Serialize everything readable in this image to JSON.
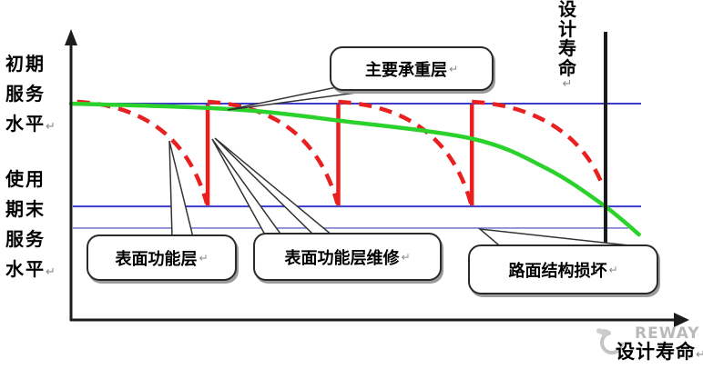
{
  "return_mark": "↵",
  "y_axis": {
    "top_label_lines": [
      "初期",
      "服务",
      "水平"
    ],
    "bottom_label_lines": [
      "使用",
      "期末",
      "服务",
      "水平"
    ]
  },
  "design_life_vertical": {
    "chars": [
      "设",
      "计",
      "寿",
      "命"
    ]
  },
  "x_axis_label": {
    "text": "设计寿命"
  },
  "watermark": {
    "text": "REWAY"
  },
  "callouts": {
    "main": {
      "label": "主要承重层"
    },
    "surface": {
      "label": "表面功能层"
    },
    "maintenance": {
      "label": "表面功能层维修"
    },
    "damage": {
      "label": "路面结构损坏"
    }
  },
  "colors": {
    "green": "#2bd22b",
    "red": "#ea1f1f",
    "blue": "#3c3cc8",
    "blue_light": "#7d7dd2",
    "axis": "#1c1c1c",
    "design_life_line": "#1a1a1a"
  },
  "chart_data": {
    "type": "line",
    "title": "",
    "xlabel": "设计寿命",
    "ylabel_annotations": [
      "初期服务水平",
      "使用期末服务水平"
    ],
    "x_range": [
      0,
      1
    ],
    "grid": false,
    "reference_lines": {
      "horizontal_levels": [
        1.0,
        0.525,
        0.425
      ],
      "vertical_design_life_x": 0.88
    },
    "series": [
      {
        "name": "主要承重层",
        "style": "solid",
        "color": "#2bd22b",
        "points": [
          [
            0.0,
            1.0
          ],
          [
            0.26,
            0.975
          ],
          [
            0.445,
            0.92
          ],
          [
            0.663,
            0.836
          ],
          [
            0.783,
            0.7
          ],
          [
            0.877,
            0.53
          ],
          [
            0.935,
            0.395
          ]
        ]
      },
      {
        "name": "表面功能层",
        "style": "dashed",
        "color": "#ea1f1f",
        "top_level": 1.0,
        "bottom_level": 0.53,
        "cycles": [
          {
            "x_start": 0.01,
            "x_end": 0.225
          },
          {
            "x_start": 0.225,
            "x_end": 0.44
          },
          {
            "x_start": 0.44,
            "x_end": 0.66
          },
          {
            "x_start": 0.66,
            "x_end": 0.877,
            "cut_by_design_life": true
          }
        ],
        "maintenance_x": [
          0.225,
          0.44,
          0.66
        ]
      }
    ]
  }
}
